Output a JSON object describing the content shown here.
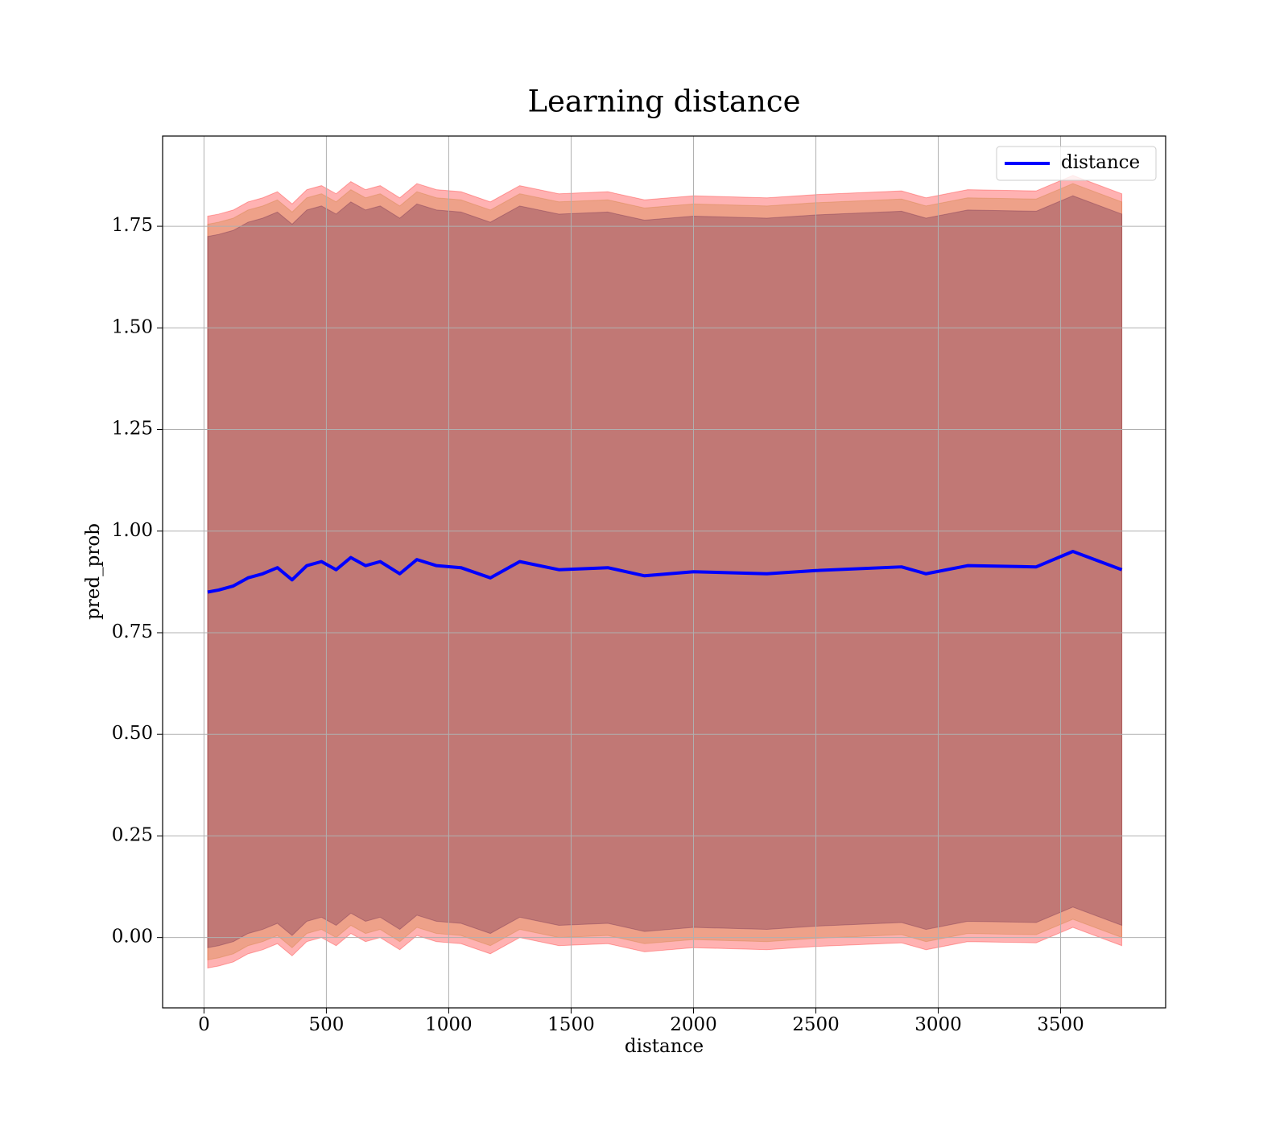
{
  "chart_data": {
    "type": "line",
    "title": "Learning distance",
    "xlabel": "distance",
    "ylabel": "pred_prob",
    "x": [
      15,
      60,
      120,
      180,
      240,
      300,
      360,
      420,
      480,
      540,
      600,
      660,
      720,
      800,
      870,
      950,
      1050,
      1170,
      1290,
      1450,
      1650,
      1800,
      2000,
      2300,
      2500,
      2850,
      2950,
      3120,
      3400,
      3550,
      3750
    ],
    "series": [
      {
        "name": "distance",
        "color": "#0000ff",
        "values": [
          0.85,
          0.855,
          0.865,
          0.885,
          0.895,
          0.91,
          0.88,
          0.915,
          0.925,
          0.905,
          0.935,
          0.915,
          0.925,
          0.895,
          0.93,
          0.915,
          0.91,
          0.885,
          0.925,
          0.905,
          0.91,
          0.89,
          0.9,
          0.895,
          0.903,
          0.912,
          0.895,
          0.915,
          0.912,
          0.95,
          0.905
        ]
      }
    ],
    "bands": [
      {
        "color": "#ff0000",
        "upper": [
          1.775,
          1.78,
          1.79,
          1.81,
          1.82,
          1.835,
          1.805,
          1.84,
          1.85,
          1.83,
          1.86,
          1.84,
          1.85,
          1.82,
          1.855,
          1.84,
          1.835,
          1.81,
          1.85,
          1.83,
          1.835,
          1.815,
          1.825,
          1.82,
          1.828,
          1.837,
          1.82,
          1.84,
          1.837,
          1.875,
          1.83
        ],
        "lower": [
          -0.075,
          -0.07,
          -0.06,
          -0.04,
          -0.03,
          -0.015,
          -0.045,
          -0.01,
          0,
          -0.02,
          0.01,
          -0.01,
          0,
          -0.03,
          0.005,
          -0.01,
          -0.015,
          -0.04,
          0,
          -0.02,
          -0.015,
          -0.035,
          -0.025,
          -0.03,
          -0.022,
          -0.013,
          -0.03,
          -0.01,
          -0.013,
          0.025,
          -0.02
        ]
      },
      {
        "color": "#c87a2a",
        "upper": [
          1.755,
          1.76,
          1.77,
          1.79,
          1.8,
          1.815,
          1.785,
          1.82,
          1.83,
          1.81,
          1.84,
          1.82,
          1.83,
          1.8,
          1.835,
          1.82,
          1.815,
          1.79,
          1.83,
          1.81,
          1.815,
          1.795,
          1.805,
          1.8,
          1.808,
          1.817,
          1.8,
          1.82,
          1.817,
          1.855,
          1.81
        ],
        "lower": [
          -0.055,
          -0.05,
          -0.04,
          -0.02,
          -0.01,
          0.005,
          -0.025,
          0.01,
          0.02,
          0,
          0.03,
          0.01,
          0.02,
          -0.01,
          0.025,
          0.01,
          0.005,
          -0.02,
          0.02,
          0,
          0.005,
          -0.015,
          -0.005,
          -0.01,
          -0.002,
          0.007,
          -0.01,
          0.01,
          0.007,
          0.045,
          0
        ]
      },
      {
        "color": "#5a1a4a",
        "upper": [
          1.725,
          1.73,
          1.74,
          1.76,
          1.77,
          1.785,
          1.755,
          1.79,
          1.8,
          1.78,
          1.81,
          1.79,
          1.8,
          1.77,
          1.805,
          1.79,
          1.785,
          1.76,
          1.8,
          1.78,
          1.785,
          1.765,
          1.775,
          1.77,
          1.778,
          1.787,
          1.77,
          1.79,
          1.787,
          1.825,
          1.78
        ],
        "lower": [
          -0.025,
          -0.02,
          -0.01,
          0.01,
          0.02,
          0.035,
          0.005,
          0.04,
          0.05,
          0.03,
          0.06,
          0.04,
          0.05,
          0.02,
          0.055,
          0.04,
          0.035,
          0.01,
          0.05,
          0.03,
          0.035,
          0.015,
          0.025,
          0.02,
          0.028,
          0.037,
          0.02,
          0.04,
          0.037,
          0.075,
          0.03
        ]
      }
    ],
    "xlim": [
      -169,
      3929
    ],
    "ylim": [
      -0.173,
      1.972
    ],
    "xticks": [
      0,
      500,
      1000,
      1500,
      2000,
      2500,
      3000,
      3500
    ],
    "yticks": [
      {
        "value": 0,
        "label": "0.00"
      },
      0.25,
      {
        "value": 0.5,
        "label": "0.50"
      },
      0.75,
      {
        "value": 1,
        "label": "1.00"
      },
      1.25,
      {
        "value": 1.5,
        "label": "1.50"
      },
      1.75
    ],
    "grid": true,
    "legend": "upper right"
  }
}
